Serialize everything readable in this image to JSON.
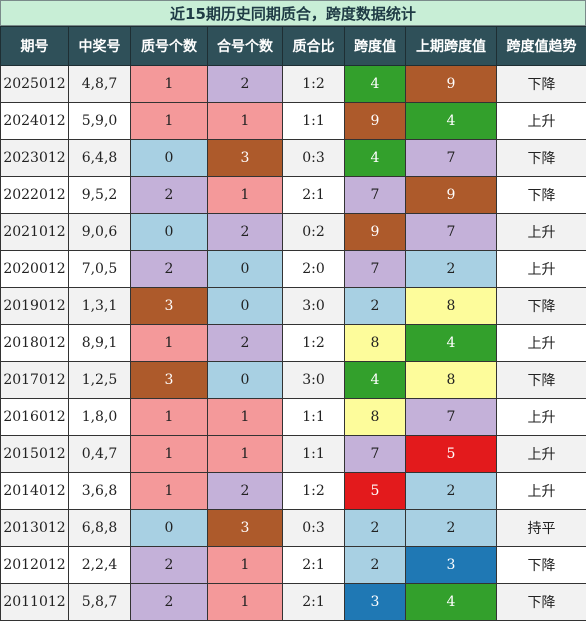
{
  "title": "近15期历史同期质合，跨度数据统计",
  "headers": [
    "期号",
    "中奖号",
    "质号个数",
    "合号个数",
    "质合比",
    "跨度值",
    "上期跨度值",
    "跨度值趋势"
  ],
  "rows": [
    {
      "period": "2025012",
      "nums": "4,8,7",
      "prime": "1",
      "composite": "2",
      "ratio": "1:2",
      "span": "4",
      "prev_span": "9",
      "trend": "下降"
    },
    {
      "period": "2024012",
      "nums": "5,9,0",
      "prime": "1",
      "composite": "1",
      "ratio": "1:1",
      "span": "9",
      "prev_span": "4",
      "trend": "上升"
    },
    {
      "period": "2023012",
      "nums": "6,4,8",
      "prime": "0",
      "composite": "3",
      "ratio": "0:3",
      "span": "4",
      "prev_span": "7",
      "trend": "下降"
    },
    {
      "period": "2022012",
      "nums": "9,5,2",
      "prime": "2",
      "composite": "1",
      "ratio": "2:1",
      "span": "7",
      "prev_span": "9",
      "trend": "下降"
    },
    {
      "period": "2021012",
      "nums": "9,0,6",
      "prime": "0",
      "composite": "2",
      "ratio": "0:2",
      "span": "9",
      "prev_span": "7",
      "trend": "上升"
    },
    {
      "period": "2020012",
      "nums": "7,0,5",
      "prime": "2",
      "composite": "0",
      "ratio": "2:0",
      "span": "7",
      "prev_span": "2",
      "trend": "上升"
    },
    {
      "period": "2019012",
      "nums": "1,3,1",
      "prime": "3",
      "composite": "0",
      "ratio": "3:0",
      "span": "2",
      "prev_span": "8",
      "trend": "下降"
    },
    {
      "period": "2018012",
      "nums": "8,9,1",
      "prime": "1",
      "composite": "2",
      "ratio": "1:2",
      "span": "8",
      "prev_span": "4",
      "trend": "上升"
    },
    {
      "period": "2017012",
      "nums": "1,2,5",
      "prime": "3",
      "composite": "0",
      "ratio": "3:0",
      "span": "4",
      "prev_span": "8",
      "trend": "下降"
    },
    {
      "period": "2016012",
      "nums": "1,8,0",
      "prime": "1",
      "composite": "1",
      "ratio": "1:1",
      "span": "8",
      "prev_span": "7",
      "trend": "上升"
    },
    {
      "period": "2015012",
      "nums": "0,4,7",
      "prime": "1",
      "composite": "1",
      "ratio": "1:1",
      "span": "7",
      "prev_span": "5",
      "trend": "上升"
    },
    {
      "period": "2014012",
      "nums": "3,6,8",
      "prime": "1",
      "composite": "2",
      "ratio": "1:2",
      "span": "5",
      "prev_span": "2",
      "trend": "上升"
    },
    {
      "period": "2013012",
      "nums": "6,8,8",
      "prime": "0",
      "composite": "3",
      "ratio": "0:3",
      "span": "2",
      "prev_span": "2",
      "trend": "持平"
    },
    {
      "period": "2012012",
      "nums": "2,2,4",
      "prime": "2",
      "composite": "1",
      "ratio": "2:1",
      "span": "2",
      "prev_span": "3",
      "trend": "下降"
    },
    {
      "period": "2011012",
      "nums": "5,8,7",
      "prime": "2",
      "composite": "1",
      "ratio": "2:1",
      "span": "3",
      "prev_span": "4",
      "trend": "下降"
    }
  ],
  "colors": {
    "title_bg": "#c8eed6",
    "header_bg": "#2f5059",
    "prime": {
      "0": "#a8d0e3",
      "1": "#f4999a",
      "2": "#c4b1d9",
      "3": "#ad5a2b"
    },
    "composite": {
      "0": "#a8d0e3",
      "1": "#f4999a",
      "2": "#c4b1d9",
      "3": "#ad5a2b"
    },
    "span": {
      "2": "#a8d0e3",
      "3": "#1f78b4",
      "4": "#33a02c",
      "5": "#e31a1c",
      "7": "#c4b1d9",
      "8": "#fdfc9b",
      "9": "#ad5a2b"
    }
  }
}
